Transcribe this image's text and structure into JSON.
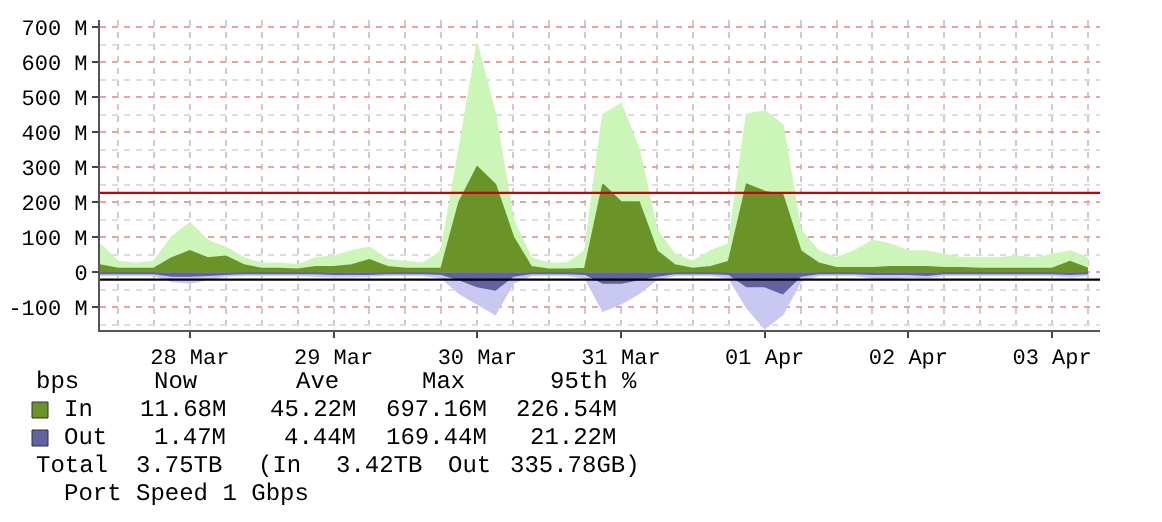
{
  "chart_data": {
    "type": "area",
    "x": [
      "--03-27T21:00",
      "--03-28T00:00",
      "--03-28T03:00",
      "--03-28T06:00",
      "--03-28T09:00",
      "--03-28T12:00",
      "--03-28T15:00",
      "--03-28T18:00",
      "--03-28T21:00",
      "--03-29T00:00",
      "--03-29T03:00",
      "--03-29T06:00",
      "--03-29T09:00",
      "--03-29T12:00",
      "--03-29T15:00",
      "--03-29T18:00",
      "--03-29T21:00",
      "--03-30T00:00",
      "--03-30T03:00",
      "--03-30T06:00",
      "--03-30T09:00",
      "--03-30T12:00",
      "--03-30T15:00",
      "--03-30T18:00",
      "--03-30T21:00",
      "--03-31T00:00",
      "--03-31T03:00",
      "--03-31T06:00",
      "--03-31T09:00",
      "--03-31T12:00",
      "--03-31T15:00",
      "--03-31T18:00",
      "--03-31T21:00",
      "--04-01T00:00",
      "--04-01T03:00",
      "--04-01T06:00",
      "--04-01T09:00",
      "--04-01T12:00",
      "--04-01T15:00",
      "--04-01T18:00",
      "--04-01T21:00",
      "--04-02T00:00",
      "--04-02T03:00",
      "--04-02T06:00",
      "--04-02T09:00",
      "--04-02T12:00",
      "--04-02T15:00",
      "--04-02T18:00",
      "--04-02T21:00",
      "--04-03T00:00",
      "--04-03T03:00",
      "--04-03T06:00",
      "--04-03T09:00",
      "--04-03T12:00",
      "--04-03T15:00",
      "--04-03T18:00"
    ],
    "series": [
      {
        "color": "#ccf5b8",
        "values": [
          80,
          30,
          25,
          30,
          100,
          140,
          90,
          70,
          40,
          25,
          25,
          20,
          40,
          45,
          60,
          70,
          35,
          30,
          25,
          60,
          350,
          650,
          450,
          150,
          40,
          25,
          25,
          60,
          450,
          480,
          350,
          120,
          50,
          30,
          60,
          80,
          450,
          460,
          420,
          120,
          60,
          40,
          60,
          90,
          80,
          60,
          60,
          50,
          40,
          40,
          40,
          45,
          40,
          50,
          60,
          40
        ]
      },
      {
        "color": "#c8c8f0",
        "values": [
          -8,
          -8,
          -8,
          -8,
          -25,
          -30,
          -20,
          -10,
          -8,
          -8,
          -8,
          -8,
          -10,
          -12,
          -12,
          -10,
          -8,
          -8,
          -8,
          -15,
          -60,
          -90,
          -120,
          -30,
          -8,
          -8,
          -8,
          -15,
          -110,
          -90,
          -60,
          -20,
          -8,
          -8,
          -8,
          -15,
          -100,
          -160,
          -120,
          -25,
          -8,
          -8,
          -8,
          -15,
          -20,
          -12,
          -15,
          -8,
          -8,
          -8,
          -8,
          -8,
          -8,
          -8,
          -12,
          -8
        ]
      },
      {
        "name": "In",
        "color": "#6b9428",
        "values": [
          20,
          10,
          10,
          10,
          40,
          60,
          40,
          45,
          20,
          10,
          10,
          8,
          15,
          15,
          20,
          35,
          15,
          10,
          10,
          10,
          200,
          300,
          250,
          100,
          15,
          8,
          8,
          10,
          250,
          200,
          200,
          60,
          20,
          10,
          15,
          30,
          250,
          230,
          220,
          60,
          25,
          12,
          12,
          12,
          15,
          15,
          15,
          12,
          12,
          10,
          10,
          10,
          10,
          10,
          30,
          10
        ]
      },
      {
        "name": "Out",
        "color": "#6262a0",
        "values": [
          -3,
          -3,
          -3,
          -3,
          -10,
          -10,
          -8,
          -5,
          -3,
          -3,
          -3,
          -3,
          -3,
          -5,
          -5,
          -5,
          -3,
          -3,
          -3,
          -5,
          -20,
          -40,
          -50,
          -10,
          -3,
          -3,
          -3,
          -5,
          -30,
          -30,
          -20,
          -10,
          -3,
          -3,
          -3,
          -5,
          -40,
          -40,
          -60,
          -10,
          -3,
          -3,
          -3,
          -5,
          -5,
          -5,
          -8,
          -3,
          -3,
          -3,
          -3,
          -3,
          -3,
          -3,
          -5,
          -3
        ]
      }
    ],
    "xlim": [
      "--03-27T21:00",
      "--04-03T20:00"
    ],
    "xticks": [
      {
        "value": "--03-28T12:00",
        "label": "28 Mar"
      },
      {
        "value": "--03-29T12:00",
        "label": "29 Mar"
      },
      {
        "value": "--03-30T12:00",
        "label": "30 Mar"
      },
      {
        "value": "--03-31T12:00",
        "label": "31 Mar"
      },
      {
        "value": "--04-01T12:00",
        "label": "01 Apr"
      },
      {
        "value": "--04-02T12:00",
        "label": "02 Apr"
      },
      {
        "value": "--04-03T12:00",
        "label": "03 Apr"
      }
    ],
    "ylim": [
      -165,
      720
    ],
    "yticks": [
      {
        "value": -100,
        "label": "-100 M"
      },
      0,
      {
        "value": 100,
        "label": "100 M"
      },
      {
        "value": 200,
        "label": "200 M"
      },
      {
        "value": 300,
        "label": "300 M"
      },
      {
        "value": 400,
        "label": "400 M"
      },
      {
        "value": 500,
        "label": "500 M"
      },
      {
        "value": 600,
        "label": "600 M"
      },
      {
        "value": 700,
        "label": "700 M"
      }
    ],
    "ref_lines": [
      {
        "axis": "y",
        "value": 226.54,
        "color": "#cc0000"
      },
      {
        "axis": "y",
        "value": -21.22,
        "color": "#000000"
      }
    ],
    "grid": true,
    "legend": "bottom",
    "marker": "none",
    "line_style": "solid",
    "annotations": [
      "bps",
      "Now",
      "Ave",
      "Max",
      "95th %",
      "11.68M",
      "45.22M",
      "697.16M",
      "226.54M",
      "1.47M",
      "4.44M",
      "169.44M",
      "21.22M",
      "Total",
      "3.75TB",
      "(In",
      "3.42TB",
      "Out",
      "335.78GB)",
      "Port Speed 1 Gbps"
    ]
  }
}
